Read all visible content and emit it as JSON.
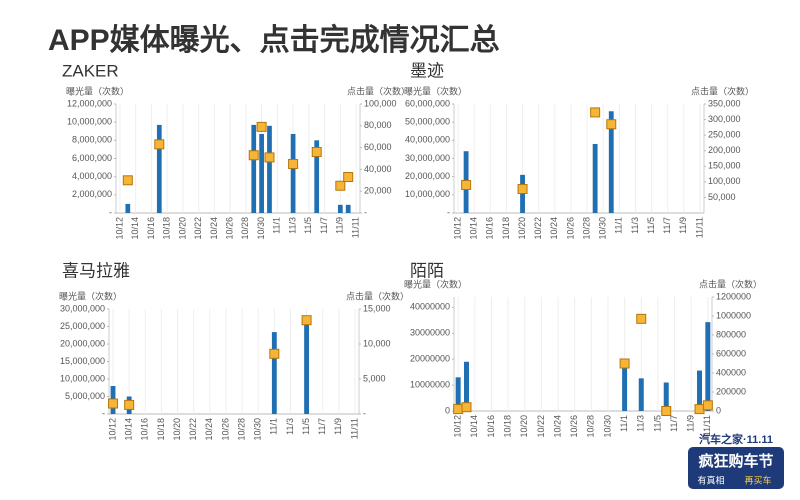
{
  "title": "APP媒体曝光、点击完成情况汇总",
  "logo": {
    "brand": "汽车之家·11.11",
    "name": "疯狂购车节",
    "slogan": [
      "有真相",
      "再买车"
    ]
  },
  "chart_data": [
    {
      "type": "bar",
      "title": "ZAKER",
      "y_label": "曝光量（次数）",
      "y2_label": "点击量（次数）",
      "categories": [
        "10/12",
        null,
        "10/14",
        null,
        "10/16",
        null,
        "10/18",
        null,
        "10/20",
        null,
        "10/22",
        null,
        "10/24",
        null,
        "10/26",
        null,
        "10/28",
        null,
        "10/30",
        null,
        "11/1",
        null,
        "11/3",
        null,
        "11/5",
        null,
        "11/7",
        null,
        "11/9",
        null,
        "11/11"
      ],
      "series": [
        {
          "kind": "bar",
          "color": "#1f6fb2",
          "values": [
            null,
            1000000,
            null,
            null,
            null,
            9700000,
            null,
            null,
            null,
            null,
            null,
            null,
            null,
            null,
            null,
            null,
            null,
            9700000,
            8700000,
            9600000,
            null,
            null,
            8700000,
            null,
            null,
            8000000,
            null,
            null,
            900000,
            900000,
            null
          ]
        },
        {
          "kind": "marker",
          "axis": "y2",
          "color": "#f7b538",
          "values": [
            null,
            30000,
            null,
            null,
            null,
            63000,
            null,
            null,
            null,
            null,
            null,
            null,
            null,
            null,
            null,
            null,
            null,
            53000,
            79000,
            51000,
            null,
            null,
            45000,
            null,
            null,
            56000,
            null,
            null,
            25000,
            33000,
            null
          ]
        }
      ],
      "ylim": [
        0,
        12000000
      ],
      "yticks": [
        {
          "value": 0,
          "label": "-"
        },
        {
          "value": 2000000,
          "label": "2,000,000"
        },
        {
          "value": 4000000,
          "label": "4,000,000"
        },
        {
          "value": 6000000,
          "label": "6,000,000"
        },
        {
          "value": 8000000,
          "label": "8,000,000"
        },
        {
          "value": 10000000,
          "label": "10,000,000"
        },
        {
          "value": 12000000,
          "label": "12,000,000"
        }
      ],
      "y2lim": [
        0,
        100000
      ],
      "y2ticks": [
        {
          "value": 0,
          "label": "-"
        },
        {
          "value": 20000,
          "label": "20,000"
        },
        {
          "value": 40000,
          "label": "40,000"
        },
        {
          "value": 60000,
          "label": "60,000"
        },
        {
          "value": 80000,
          "label": "80,000"
        },
        {
          "value": 100000,
          "label": "100,000"
        }
      ]
    },
    {
      "type": "bar",
      "title": "墨迹",
      "y_label": "曝光量（次数）",
      "y2_label": "点击量（次数）",
      "categories": [
        "10/12",
        null,
        "10/14",
        null,
        "10/16",
        null,
        "10/18",
        null,
        "10/20",
        null,
        "10/22",
        null,
        "10/24",
        null,
        "10/26",
        null,
        "10/28",
        null,
        "10/30",
        null,
        "11/1",
        null,
        "11/3",
        null,
        "11/5",
        null,
        "11/7",
        null,
        "11/9",
        null,
        "11/11"
      ],
      "series": [
        {
          "kind": "bar",
          "color": "#1f6fb2",
          "values": [
            null,
            34000000,
            null,
            null,
            null,
            null,
            null,
            null,
            21000000,
            null,
            null,
            null,
            null,
            null,
            null,
            null,
            null,
            38000000,
            null,
            56000000,
            null,
            null,
            null,
            null,
            null,
            null,
            null,
            null,
            null,
            null,
            null
          ]
        },
        {
          "kind": "marker",
          "axis": "y2",
          "color": "#f7b538",
          "values": [
            null,
            90000,
            null,
            null,
            null,
            null,
            null,
            null,
            77000,
            null,
            null,
            null,
            null,
            null,
            null,
            null,
            null,
            323000,
            null,
            285000,
            null,
            null,
            null,
            null,
            null,
            null,
            null,
            null,
            null,
            null,
            null
          ]
        }
      ],
      "ylim": [
        0,
        60000000
      ],
      "yticks": [
        {
          "value": 0,
          "label": "-"
        },
        {
          "value": 10000000,
          "label": "10,000,000"
        },
        {
          "value": 20000000,
          "label": "20,000,000"
        },
        {
          "value": 30000000,
          "label": "30,000,000"
        },
        {
          "value": 40000000,
          "label": "40,000,000"
        },
        {
          "value": 50000000,
          "label": "50,000,000"
        },
        {
          "value": 60000000,
          "label": "60,000,000"
        }
      ],
      "y2lim": [
        0,
        350000
      ],
      "y2ticks": [
        {
          "value": 50000,
          "label": "50,000"
        },
        {
          "value": 100000,
          "label": "100,000"
        },
        {
          "value": 150000,
          "label": "150,000"
        },
        {
          "value": 200000,
          "label": "200,000"
        },
        {
          "value": 250000,
          "label": "250,000"
        },
        {
          "value": 300000,
          "label": "300,000"
        },
        {
          "value": 350000,
          "label": "350,000"
        }
      ]
    },
    {
      "type": "bar",
      "title": "喜马拉雅",
      "y_label": "曝光量（次数）",
      "y2_label": "点击量（次数）",
      "categories": [
        "10/12",
        null,
        "10/14",
        null,
        "10/16",
        null,
        "10/18",
        null,
        "10/20",
        null,
        "10/22",
        null,
        "10/24",
        null,
        "10/26",
        null,
        "10/28",
        null,
        "10/30",
        null,
        "11/1",
        null,
        "11/3",
        null,
        "11/5",
        null,
        "11/7",
        null,
        "11/9",
        null,
        "11/11"
      ],
      "series": [
        {
          "kind": "bar",
          "color": "#1f6fb2",
          "values": [
            8000000,
            null,
            5000000,
            null,
            null,
            null,
            null,
            null,
            null,
            null,
            null,
            null,
            null,
            null,
            null,
            null,
            null,
            null,
            null,
            null,
            23400000,
            null,
            null,
            null,
            27400000,
            null,
            null,
            null,
            null,
            null,
            null
          ]
        },
        {
          "kind": "marker",
          "axis": "y2",
          "color": "#f7b538",
          "values": [
            1500,
            null,
            1300,
            null,
            null,
            null,
            null,
            null,
            null,
            null,
            null,
            null,
            null,
            null,
            null,
            null,
            null,
            null,
            null,
            null,
            8600,
            null,
            null,
            null,
            13400,
            null,
            null,
            null,
            null,
            null,
            null
          ]
        }
      ],
      "ylim": [
        0,
        30000000
      ],
      "yticks": [
        {
          "value": 0,
          "label": "-"
        },
        {
          "value": 5000000,
          "label": "5,000,000"
        },
        {
          "value": 10000000,
          "label": "10,000,000"
        },
        {
          "value": 15000000,
          "label": "15,000,000"
        },
        {
          "value": 20000000,
          "label": "20,000,000"
        },
        {
          "value": 25000000,
          "label": "25,000,000"
        },
        {
          "value": 30000000,
          "label": "30,000,000"
        }
      ],
      "y2lim": [
        0,
        15000
      ],
      "y2ticks": [
        {
          "value": 0,
          "label": "-"
        },
        {
          "value": 5000,
          "label": "5,000"
        },
        {
          "value": 10000,
          "label": "10,000"
        },
        {
          "value": 15000,
          "label": "15,000"
        }
      ]
    },
    {
      "type": "bar",
      "title": "陌陌",
      "y_label": "曝光量（次数）",
      "y2_label": "点击量（次数）",
      "categories": [
        "10/12",
        null,
        "10/14",
        null,
        "10/16",
        null,
        "10/18",
        null,
        "10/20",
        null,
        "10/22",
        null,
        "10/24",
        null,
        "10/26",
        null,
        "10/28",
        null,
        "10/30",
        null,
        "11/1",
        null,
        "11/3",
        null,
        "11/5",
        null,
        "11/7",
        null,
        "11/9",
        null,
        "11/11"
      ],
      "series": [
        {
          "kind": "bar",
          "color": "#1f6fb2",
          "values": [
            13000000,
            19000000,
            null,
            null,
            null,
            null,
            null,
            null,
            null,
            null,
            null,
            null,
            null,
            null,
            null,
            null,
            null,
            null,
            null,
            null,
            17500000,
            null,
            12600000,
            null,
            null,
            11000000,
            null,
            null,
            null,
            15600000,
            34300000
          ]
        },
        {
          "kind": "marker",
          "axis": "y2",
          "color": "#f7b538",
          "values": [
            20000,
            40000,
            null,
            null,
            null,
            null,
            null,
            null,
            null,
            null,
            null,
            null,
            null,
            null,
            null,
            null,
            null,
            null,
            null,
            null,
            500000,
            null,
            970000,
            null,
            null,
            0,
            null,
            null,
            null,
            20000,
            60000
          ]
        }
      ],
      "ylim": [
        0,
        44000000
      ],
      "yticks": [
        0,
        10000000,
        20000000,
        30000000,
        40000000
      ],
      "y2lim": [
        0,
        1200000
      ],
      "y2ticks": [
        0,
        200000,
        400000,
        600000,
        800000,
        1000000,
        1200000
      ]
    }
  ]
}
